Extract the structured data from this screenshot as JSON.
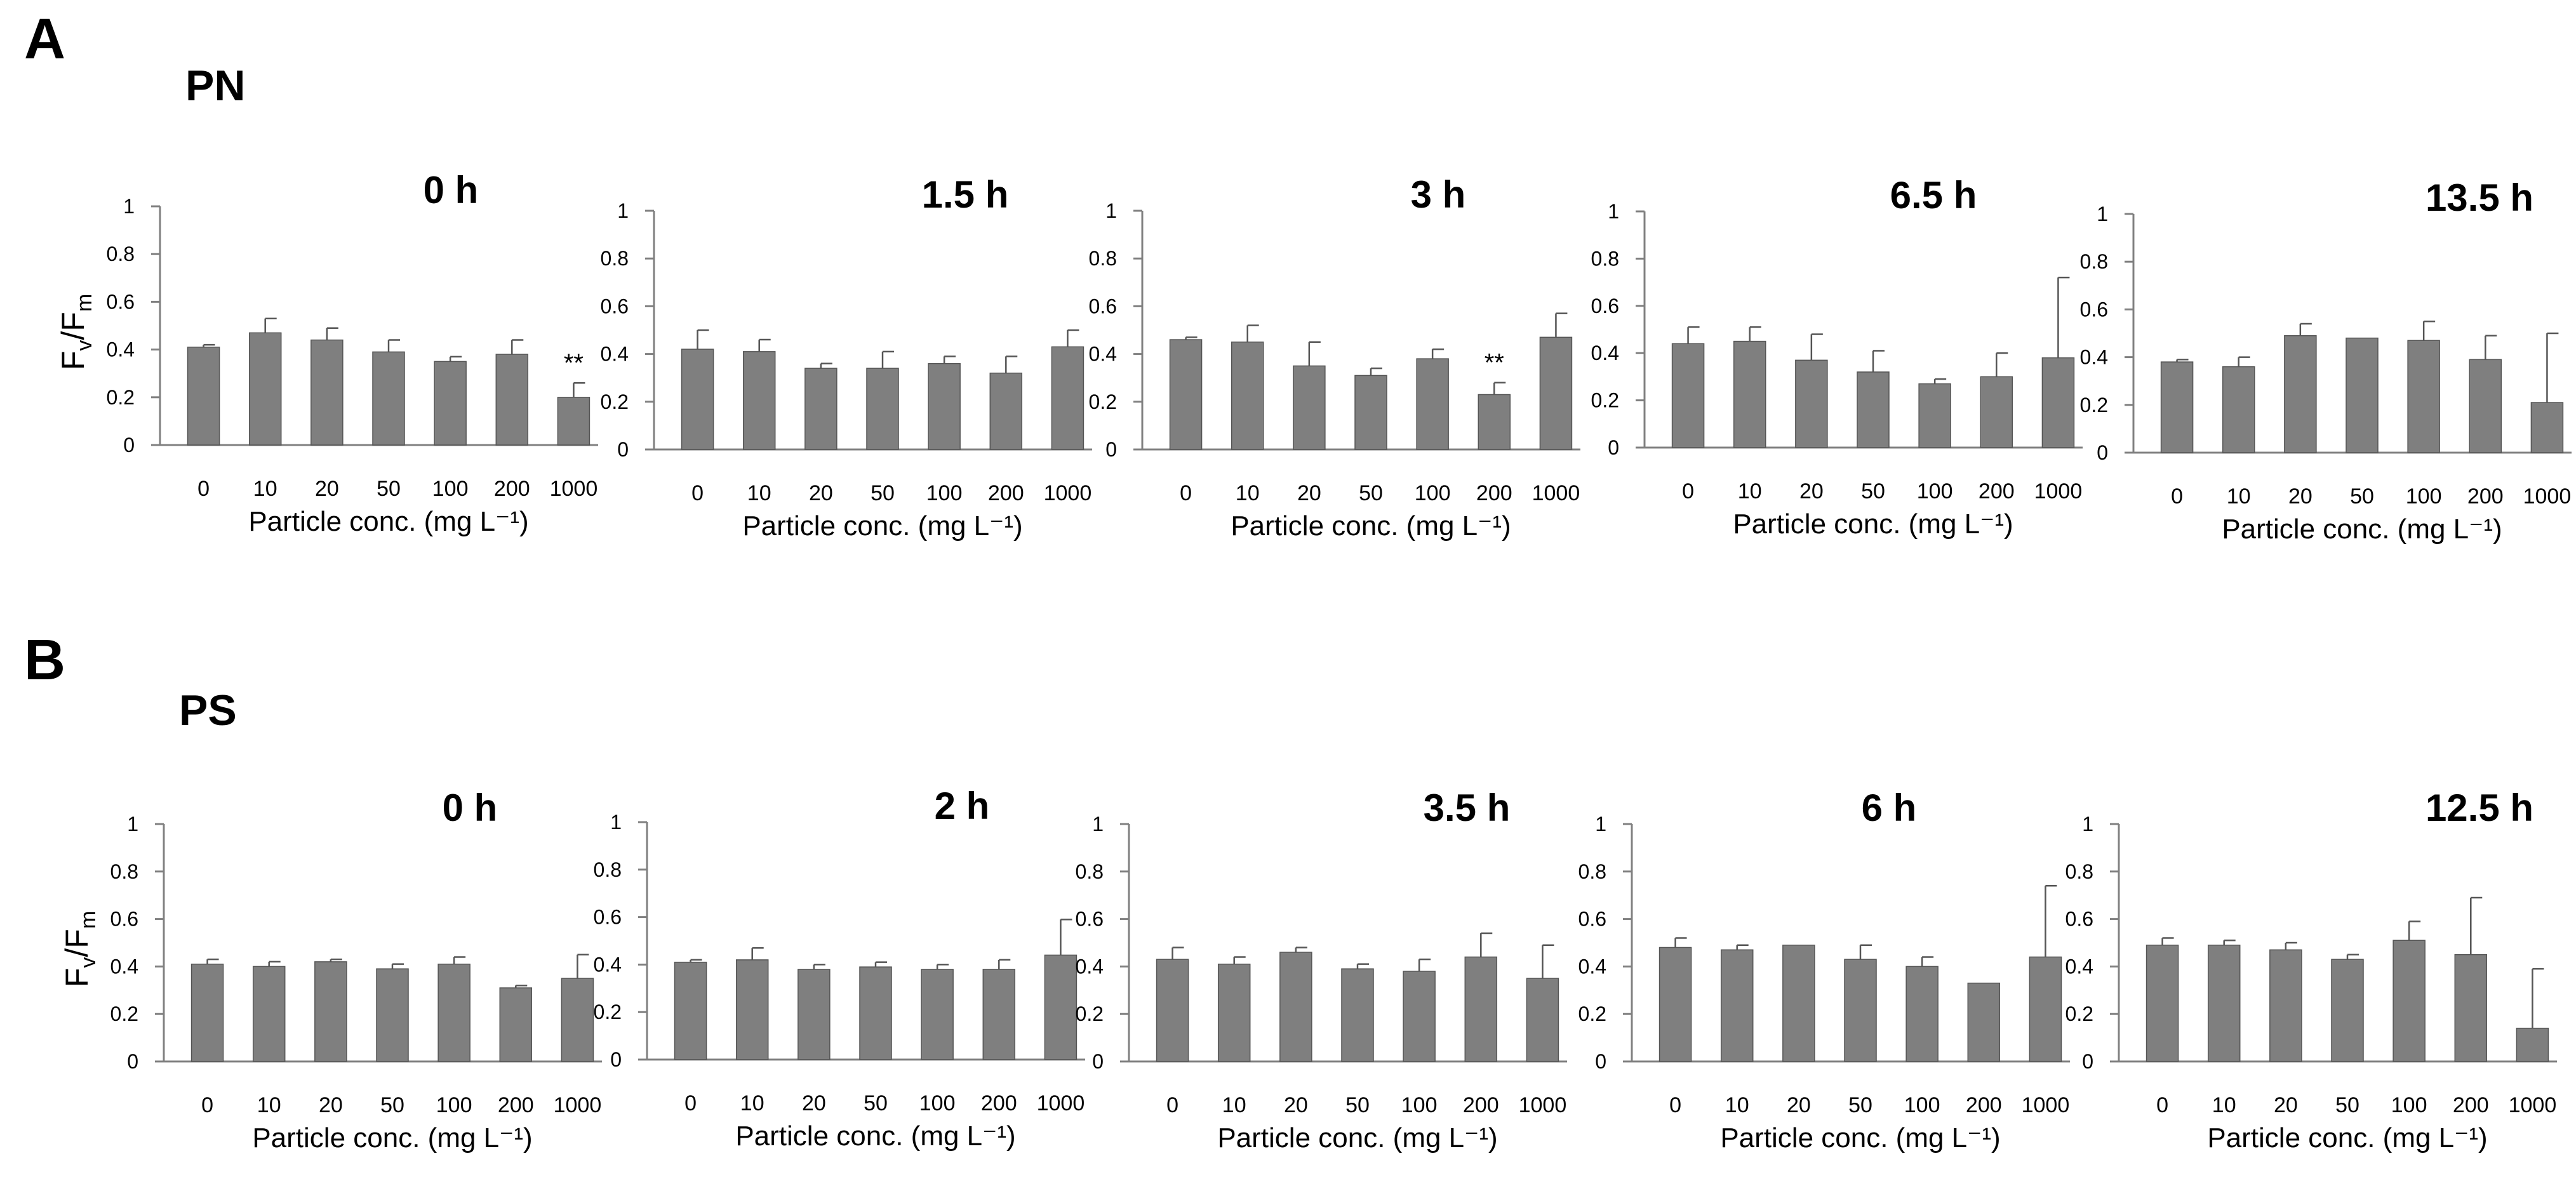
{
  "panels": [
    {
      "letter": "A",
      "material": "PN"
    },
    {
      "letter": "B",
      "material": "PS"
    }
  ],
  "colors": {
    "bar": "#7f7f7f",
    "axis": "#808080",
    "text": "#000000"
  },
  "chart_data": [
    {
      "type": "bar",
      "panel": "A",
      "material": "PN",
      "title": "0 h",
      "categories": [
        "0",
        "10",
        "20",
        "50",
        "100",
        "200",
        "1000"
      ],
      "values": [
        0.41,
        0.47,
        0.44,
        0.39,
        0.35,
        0.38,
        0.2
      ],
      "errors": [
        0.01,
        0.06,
        0.05,
        0.05,
        0.02,
        0.06,
        0.06
      ],
      "annotations": {
        "6": "**"
      },
      "ylabel": "Fv/Fm",
      "xlabel": "Particle conc. (mg L⁻¹)",
      "ylim": [
        0,
        1
      ],
      "yticks": [
        "0",
        "0.2",
        "0.4",
        "0.6",
        "0.8",
        "1"
      ]
    },
    {
      "type": "bar",
      "panel": "A",
      "material": "PN",
      "title": "1.5 h",
      "categories": [
        "0",
        "10",
        "20",
        "50",
        "100",
        "200",
        "1000"
      ],
      "values": [
        0.42,
        0.41,
        0.34,
        0.34,
        0.36,
        0.32,
        0.43
      ],
      "errors": [
        0.08,
        0.05,
        0.02,
        0.07,
        0.03,
        0.07,
        0.07
      ],
      "annotations": {},
      "ylabel": "",
      "xlabel": "Particle conc. (mg L⁻¹)",
      "ylim": [
        0,
        1
      ],
      "yticks": [
        "0",
        "0.2",
        "0.4",
        "0.6",
        "0.8",
        "1"
      ]
    },
    {
      "type": "bar",
      "panel": "A",
      "material": "PN",
      "title": "3 h",
      "categories": [
        "0",
        "10",
        "20",
        "50",
        "100",
        "200",
        "1000"
      ],
      "values": [
        0.46,
        0.45,
        0.35,
        0.31,
        0.38,
        0.23,
        0.47
      ],
      "errors": [
        0.01,
        0.07,
        0.1,
        0.03,
        0.04,
        0.05,
        0.1
      ],
      "annotations": {
        "5": "**"
      },
      "ylabel": "",
      "xlabel": "Particle conc. (mg L⁻¹)",
      "ylim": [
        0,
        1
      ],
      "yticks": [
        "0",
        "0.2",
        "0.4",
        "0.6",
        "0.8",
        "1"
      ]
    },
    {
      "type": "bar",
      "panel": "A",
      "material": "PN",
      "title": "6.5 h",
      "categories": [
        "0",
        "10",
        "20",
        "50",
        "100",
        "200",
        "1000"
      ],
      "values": [
        0.44,
        0.45,
        0.37,
        0.32,
        0.27,
        0.3,
        0.38
      ],
      "errors": [
        0.07,
        0.06,
        0.11,
        0.09,
        0.02,
        0.1,
        0.34
      ],
      "annotations": {},
      "ylabel": "",
      "xlabel": "Particle conc. (mg L⁻¹)",
      "ylim": [
        0,
        1
      ],
      "yticks": [
        "0",
        "0.2",
        "0.4",
        "0.6",
        "0.8",
        "1"
      ]
    },
    {
      "type": "bar",
      "panel": "A",
      "material": "PN",
      "title": "13.5 h",
      "categories": [
        "0",
        "10",
        "20",
        "50",
        "100",
        "200",
        "1000"
      ],
      "values": [
        0.38,
        0.36,
        0.49,
        0.48,
        0.47,
        0.39,
        0.21
      ],
      "errors": [
        0.01,
        0.04,
        0.05,
        0.0,
        0.08,
        0.1,
        0.29
      ],
      "annotations": {},
      "ylabel": "",
      "xlabel": "Particle conc. (mg L⁻¹)",
      "ylim": [
        0,
        1
      ],
      "yticks": [
        "0",
        "0.2",
        "0.4",
        "0.6",
        "0.8",
        "1"
      ]
    },
    {
      "type": "bar",
      "panel": "B",
      "material": "PS",
      "title": "0 h",
      "categories": [
        "0",
        "10",
        "20",
        "50",
        "100",
        "200",
        "1000"
      ],
      "values": [
        0.41,
        0.4,
        0.42,
        0.39,
        0.41,
        0.31,
        0.35
      ],
      "errors": [
        0.02,
        0.02,
        0.01,
        0.02,
        0.03,
        0.01,
        0.1
      ],
      "annotations": {},
      "ylabel": "Fv/Fm",
      "xlabel": "Particle conc. (mg L⁻¹)",
      "ylim": [
        0,
        1
      ],
      "yticks": [
        "0",
        "0.2",
        "0.4",
        "0.6",
        "0.8",
        "1"
      ]
    },
    {
      "type": "bar",
      "panel": "B",
      "material": "PS",
      "title": "2 h",
      "categories": [
        "0",
        "10",
        "20",
        "50",
        "100",
        "200",
        "1000"
      ],
      "values": [
        0.41,
        0.42,
        0.38,
        0.39,
        0.38,
        0.38,
        0.44
      ],
      "errors": [
        0.01,
        0.05,
        0.02,
        0.02,
        0.02,
        0.04,
        0.15
      ],
      "annotations": {},
      "ylabel": "",
      "xlabel": "Particle conc. (mg L⁻¹)",
      "ylim": [
        0,
        1
      ],
      "yticks": [
        "0",
        "0.2",
        "0.4",
        "0.6",
        "0.8",
        "1"
      ]
    },
    {
      "type": "bar",
      "panel": "B",
      "material": "PS",
      "title": "3.5 h",
      "categories": [
        "0",
        "10",
        "20",
        "50",
        "100",
        "200",
        "1000"
      ],
      "values": [
        0.43,
        0.41,
        0.46,
        0.39,
        0.38,
        0.44,
        0.35
      ],
      "errors": [
        0.05,
        0.03,
        0.02,
        0.02,
        0.05,
        0.1,
        0.14
      ],
      "annotations": {},
      "ylabel": "",
      "xlabel": "Particle conc. (mg L⁻¹)",
      "ylim": [
        0,
        1
      ],
      "yticks": [
        "0",
        "0.2",
        "0.4",
        "0.6",
        "0.8",
        "1"
      ]
    },
    {
      "type": "bar",
      "panel": "B",
      "material": "PS",
      "title": "6 h",
      "categories": [
        "0",
        "10",
        "20",
        "50",
        "100",
        "200",
        "1000"
      ],
      "values": [
        0.48,
        0.47,
        0.49,
        0.43,
        0.4,
        0.33,
        0.44
      ],
      "errors": [
        0.04,
        0.02,
        0.0,
        0.06,
        0.04,
        0.0,
        0.3
      ],
      "annotations": {},
      "ylabel": "",
      "xlabel": "Particle conc. (mg L⁻¹)",
      "ylim": [
        0,
        1
      ],
      "yticks": [
        "0",
        "0.2",
        "0.4",
        "0.6",
        "0.8",
        "1"
      ]
    },
    {
      "type": "bar",
      "panel": "B",
      "material": "PS",
      "title": "12.5 h",
      "categories": [
        "0",
        "10",
        "20",
        "50",
        "100",
        "200",
        "1000"
      ],
      "values": [
        0.49,
        0.49,
        0.47,
        0.43,
        0.51,
        0.45,
        0.14
      ],
      "errors": [
        0.03,
        0.02,
        0.03,
        0.02,
        0.08,
        0.24,
        0.25
      ],
      "annotations": {},
      "ylabel": "",
      "xlabel": "Particle conc. (mg L⁻¹)",
      "ylim": [
        0,
        1
      ],
      "yticks": [
        "0",
        "0.2",
        "0.4",
        "0.6",
        "0.8",
        "1"
      ]
    }
  ]
}
